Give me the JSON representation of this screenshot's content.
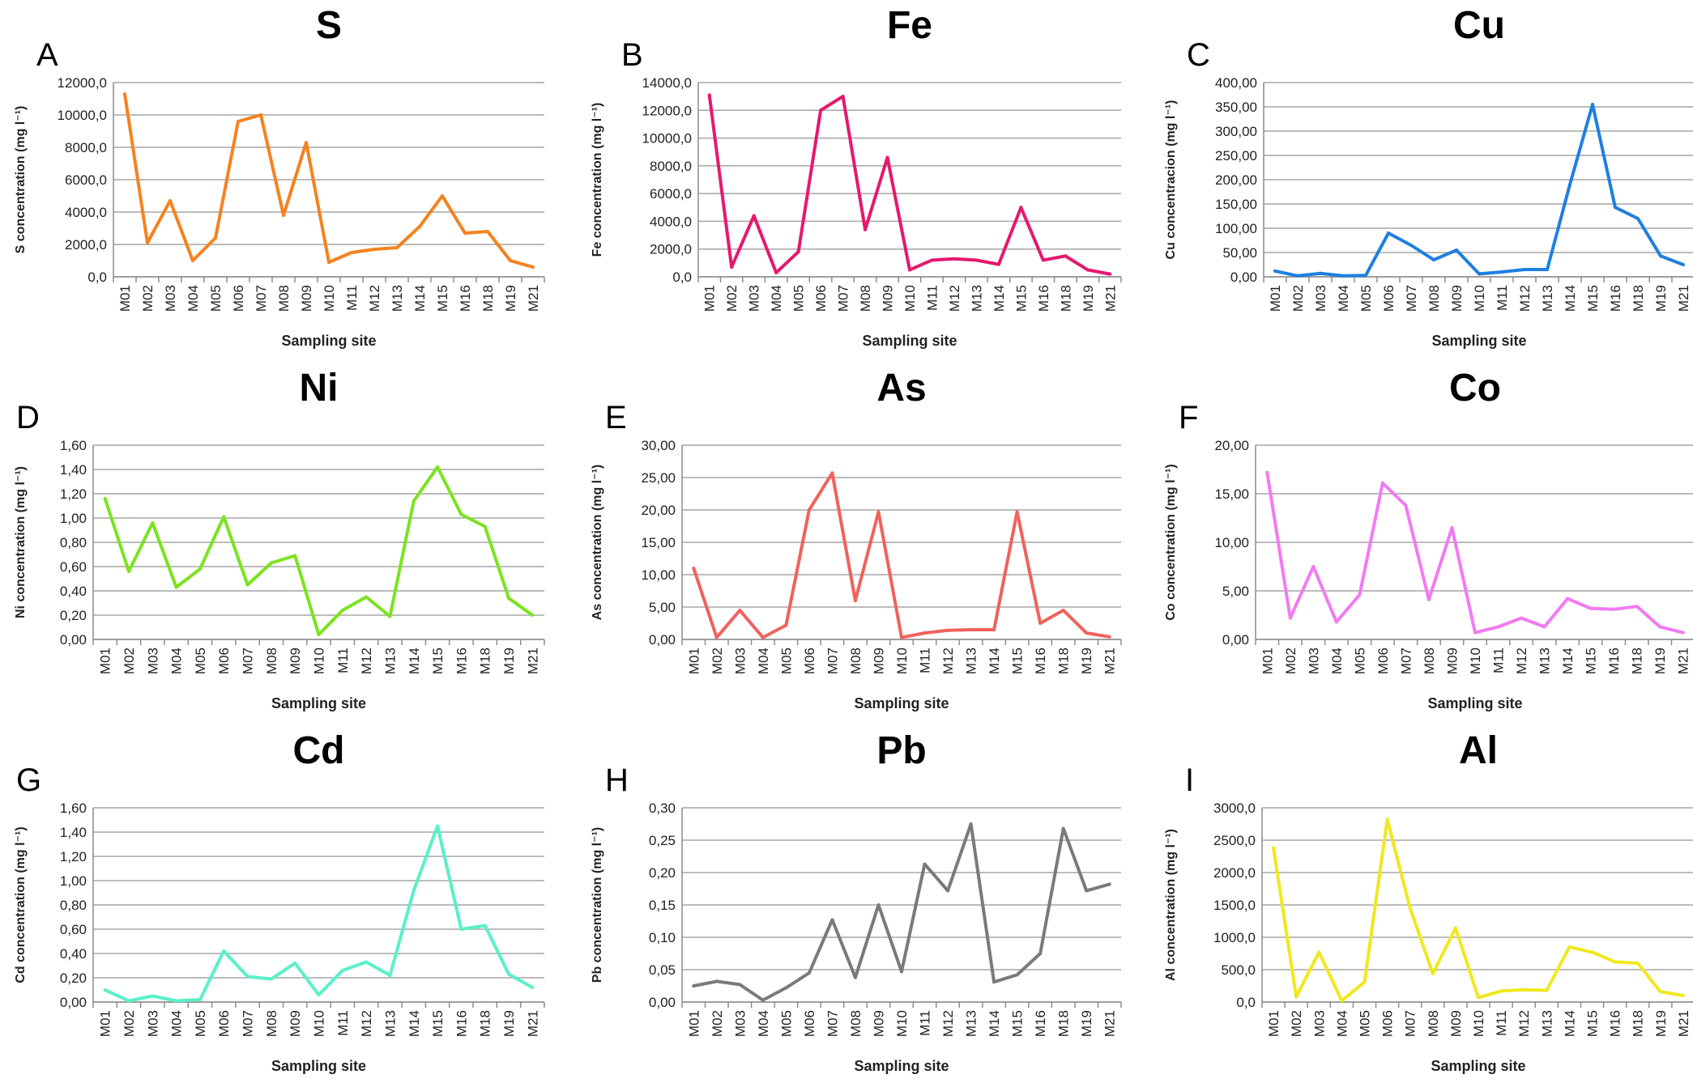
{
  "chart_data": [
    {
      "type": "line",
      "letter": "A",
      "title": "S",
      "color": "#F5821F",
      "xlabel": "Sampling site",
      "ylabel": "S concentration (mg l⁻¹)",
      "ylim": [
        0,
        12000
      ],
      "yticks": [
        "0,0",
        "2000,0",
        "4000,0",
        "6000,0",
        "8000,0",
        "10000,0",
        "12000,0"
      ],
      "categories": [
        "M01",
        "M02",
        "M03",
        "M04",
        "M05",
        "M06",
        "M07",
        "M08",
        "M09",
        "M10",
        "M11",
        "M12",
        "M13",
        "M14",
        "M15",
        "M16",
        "M18",
        "M19",
        "M21"
      ],
      "values": [
        11300,
        2100,
        4700,
        1000,
        2400,
        9600,
        10000,
        3800,
        8300,
        900,
        1500,
        1700,
        1800,
        3100,
        5000,
        2700,
        2800,
        1000,
        600
      ]
    },
    {
      "type": "line",
      "letter": "B",
      "title": "Fe",
      "color": "#E6186E",
      "xlabel": "Sampling site",
      "ylabel": "Fe concentration (mg l⁻¹)",
      "ylim": [
        0,
        14000
      ],
      "yticks": [
        "0,0",
        "2000,0",
        "4000,0",
        "6000,0",
        "8000,0",
        "10000,0",
        "12000,0",
        "14000,0"
      ],
      "categories": [
        "M01",
        "M02",
        "M03",
        "M04",
        "M05",
        "M06",
        "M07",
        "M08",
        "M09",
        "M10",
        "M11",
        "M12",
        "M13",
        "M14",
        "M15",
        "M16",
        "M18",
        "M19",
        "M21"
      ],
      "values": [
        13100,
        700,
        4400,
        300,
        1800,
        12000,
        13000,
        3400,
        8600,
        500,
        1200,
        1300,
        1200,
        900,
        5000,
        1200,
        1500,
        500,
        200
      ]
    },
    {
      "type": "line",
      "letter": "C",
      "title": "Cu",
      "color": "#1E7FE0",
      "xlabel": "Sampling site",
      "ylabel": "Cu concentracion (mg l⁻¹)",
      "ylim": [
        0,
        400
      ],
      "yticks": [
        "0,00",
        "50,00",
        "100,00",
        "150,00",
        "200,00",
        "250,00",
        "300,00",
        "350,00",
        "400,00"
      ],
      "categories": [
        "M01",
        "M02",
        "M03",
        "M04",
        "M05",
        "M06",
        "M07",
        "M08",
        "M09",
        "M10",
        "M11",
        "M12",
        "M13",
        "M14",
        "M15",
        "M16",
        "M18",
        "M19",
        "M21"
      ],
      "values": [
        12,
        2,
        7,
        2,
        3,
        90,
        65,
        35,
        55,
        6,
        10,
        15,
        15,
        190,
        355,
        143,
        120,
        43,
        25
      ]
    },
    {
      "type": "line",
      "letter": "D",
      "title": "Ni",
      "color": "#7BE31F",
      "xlabel": "Sampling site",
      "ylabel": "Ni concentration (mg l⁻¹)",
      "ylim": [
        0,
        1.6
      ],
      "yticks": [
        "0,00",
        "0,20",
        "0,40",
        "0,60",
        "0,80",
        "1,00",
        "1,20",
        "1,40",
        "1,60"
      ],
      "categories": [
        "M01",
        "M02",
        "M03",
        "M04",
        "M05",
        "M06",
        "M07",
        "M08",
        "M09",
        "M10",
        "M11",
        "M12",
        "M13",
        "M14",
        "M15",
        "M16",
        "M18",
        "M19",
        "M21"
      ],
      "values": [
        1.16,
        0.56,
        0.96,
        0.43,
        0.58,
        1.01,
        0.45,
        0.63,
        0.69,
        0.04,
        0.24,
        0.35,
        0.19,
        1.14,
        1.42,
        1.03,
        0.93,
        0.34,
        0.2
      ]
    },
    {
      "type": "line",
      "letter": "E",
      "title": "As",
      "color": "#F0625C",
      "xlabel": "Sampling site",
      "ylabel": "As concentration (mg l⁻¹)",
      "ylim": [
        0,
        30
      ],
      "yticks": [
        "0,00",
        "5,00",
        "10,00",
        "15,00",
        "20,00",
        "25,00",
        "30,00"
      ],
      "categories": [
        "M01",
        "M02",
        "M03",
        "M04",
        "M05",
        "M06",
        "M07",
        "M08",
        "M09",
        "M10",
        "M11",
        "M12",
        "M13",
        "M14",
        "M15",
        "M16",
        "M18",
        "M19",
        "M21"
      ],
      "values": [
        11,
        0.3,
        4.5,
        0.3,
        2.2,
        20,
        25.7,
        6,
        19.7,
        0.3,
        1,
        1.4,
        1.5,
        1.5,
        19.7,
        2.5,
        4.5,
        1,
        0.4
      ]
    },
    {
      "type": "line",
      "letter": "F",
      "title": "Co",
      "color": "#F27AF2",
      "xlabel": "Sampling site",
      "ylabel": "Co concentration (mg l⁻¹)",
      "ylim": [
        0,
        20
      ],
      "yticks": [
        "0,00",
        "5,00",
        "10,00",
        "15,00",
        "20,00"
      ],
      "categories": [
        "M01",
        "M02",
        "M03",
        "M04",
        "M05",
        "M06",
        "M07",
        "M08",
        "M09",
        "M10",
        "M11",
        "M12",
        "M13",
        "M14",
        "M15",
        "M16",
        "M18",
        "M19",
        "M21"
      ],
      "values": [
        17.2,
        2.2,
        7.5,
        1.8,
        4.6,
        16.1,
        13.8,
        4.1,
        11.5,
        0.7,
        1.3,
        2.2,
        1.3,
        4.2,
        3.2,
        3.1,
        3.4,
        1.3,
        0.7
      ]
    },
    {
      "type": "line",
      "letter": "G",
      "title": "Cd",
      "color": "#5AF0C8",
      "xlabel": "Sampling site",
      "ylabel": "Cd concentration (mg l⁻¹)",
      "ylim": [
        0,
        1.6
      ],
      "yticks": [
        "0,00",
        "0,20",
        "0,40",
        "0,60",
        "0,80",
        "1,00",
        "1,20",
        "1,40",
        "1,60"
      ],
      "categories": [
        "M01",
        "M02",
        "M03",
        "M04",
        "M05",
        "M06",
        "M07",
        "M08",
        "M09",
        "M10",
        "M11",
        "M12",
        "M13",
        "M14",
        "M15",
        "M16",
        "M18",
        "M19",
        "M21"
      ],
      "values": [
        0.1,
        0.01,
        0.05,
        0.01,
        0.02,
        0.42,
        0.21,
        0.19,
        0.32,
        0.06,
        0.26,
        0.33,
        0.22,
        0.92,
        1.45,
        0.6,
        0.63,
        0.23,
        0.12
      ]
    },
    {
      "type": "line",
      "letter": "H",
      "title": "Pb",
      "color": "#7A7A7A",
      "xlabel": "Sampling site",
      "ylabel": "Pb concentration (mg l⁻¹)",
      "ylim": [
        0,
        0.3
      ],
      "yticks": [
        "0,00",
        "0,05",
        "0,10",
        "0,15",
        "0,20",
        "0,25",
        "0,30"
      ],
      "categories": [
        "M01",
        "M02",
        "M03",
        "M04",
        "M05",
        "M06",
        "M07",
        "M08",
        "M09",
        "M10",
        "M11",
        "M12",
        "M13",
        "M14",
        "M15",
        "M16",
        "M18",
        "M19",
        "M21"
      ],
      "values": [
        0.025,
        0.032,
        0.027,
        0.003,
        0.022,
        0.045,
        0.127,
        0.038,
        0.15,
        0.047,
        0.213,
        0.172,
        0.275,
        0.031,
        0.042,
        0.075,
        0.268,
        0.172,
        0.182
      ]
    },
    {
      "type": "line",
      "letter": "I",
      "title": "Al",
      "color": "#F0E81E",
      "xlabel": "Sampling site",
      "ylabel": "Al concentration (mg l⁻¹)",
      "ylim": [
        0,
        3000
      ],
      "yticks": [
        "0,0",
        "500,0",
        "1000,0",
        "1500,0",
        "2000,0",
        "2500,0",
        "3000,0"
      ],
      "categories": [
        "M01",
        "M02",
        "M03",
        "M04",
        "M05",
        "M06",
        "M07",
        "M08",
        "M09",
        "M10",
        "M11",
        "M12",
        "M13",
        "M14",
        "M15",
        "M16",
        "M18",
        "M19",
        "M21"
      ],
      "values": [
        2380,
        80,
        770,
        20,
        310,
        2820,
        1450,
        440,
        1140,
        70,
        170,
        190,
        180,
        850,
        770,
        620,
        600,
        160,
        100
      ]
    }
  ]
}
